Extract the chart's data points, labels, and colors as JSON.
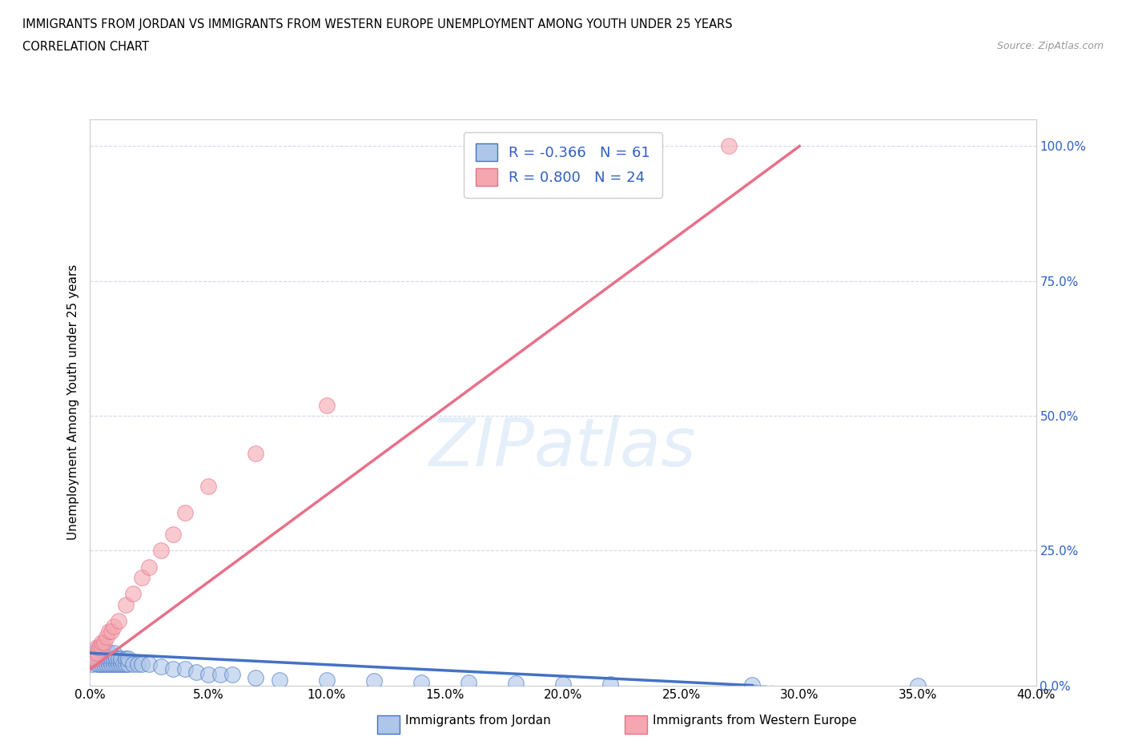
{
  "title_line1": "IMMIGRANTS FROM JORDAN VS IMMIGRANTS FROM WESTERN EUROPE UNEMPLOYMENT AMONG YOUTH UNDER 25 YEARS",
  "title_line2": "CORRELATION CHART",
  "source": "Source: ZipAtlas.com",
  "ylabel_label": "Unemployment Among Youth under 25 years",
  "xlim": [
    0.0,
    0.4
  ],
  "ylim": [
    0.0,
    1.05
  ],
  "jordan_R": -0.366,
  "jordan_N": 61,
  "western_europe_R": 0.8,
  "western_europe_N": 24,
  "jordan_color": "#aec6e8",
  "western_europe_color": "#f4a7b0",
  "jordan_line_color": "#4472c4",
  "western_europe_line_color": "#e8708a",
  "legend_text_color": "#3060c0",
  "jordan_scatter_x": [
    0.0,
    0.001,
    0.002,
    0.002,
    0.003,
    0.003,
    0.003,
    0.004,
    0.004,
    0.004,
    0.005,
    0.005,
    0.005,
    0.005,
    0.006,
    0.006,
    0.006,
    0.007,
    0.007,
    0.007,
    0.008,
    0.008,
    0.008,
    0.009,
    0.009,
    0.01,
    0.01,
    0.01,
    0.011,
    0.011,
    0.012,
    0.012,
    0.013,
    0.013,
    0.014,
    0.015,
    0.015,
    0.016,
    0.016,
    0.018,
    0.02,
    0.022,
    0.025,
    0.03,
    0.035,
    0.04,
    0.045,
    0.05,
    0.055,
    0.06,
    0.07,
    0.08,
    0.1,
    0.12,
    0.14,
    0.16,
    0.18,
    0.2,
    0.22,
    0.28,
    0.35
  ],
  "jordan_scatter_y": [
    0.05,
    0.04,
    0.05,
    0.06,
    0.04,
    0.05,
    0.06,
    0.04,
    0.05,
    0.07,
    0.04,
    0.05,
    0.06,
    0.07,
    0.04,
    0.05,
    0.06,
    0.04,
    0.05,
    0.06,
    0.04,
    0.05,
    0.06,
    0.04,
    0.05,
    0.04,
    0.05,
    0.06,
    0.04,
    0.05,
    0.04,
    0.05,
    0.04,
    0.05,
    0.04,
    0.04,
    0.05,
    0.04,
    0.05,
    0.04,
    0.04,
    0.04,
    0.04,
    0.035,
    0.03,
    0.03,
    0.025,
    0.02,
    0.02,
    0.02,
    0.015,
    0.01,
    0.01,
    0.008,
    0.006,
    0.005,
    0.004,
    0.003,
    0.002,
    0.001,
    0.0
  ],
  "we_scatter_x": [
    0.001,
    0.002,
    0.003,
    0.003,
    0.004,
    0.005,
    0.005,
    0.006,
    0.007,
    0.008,
    0.009,
    0.01,
    0.012,
    0.015,
    0.018,
    0.022,
    0.025,
    0.03,
    0.035,
    0.04,
    0.05,
    0.07,
    0.1,
    0.27
  ],
  "we_scatter_y": [
    0.05,
    0.05,
    0.06,
    0.07,
    0.07,
    0.07,
    0.08,
    0.08,
    0.09,
    0.1,
    0.1,
    0.11,
    0.12,
    0.15,
    0.17,
    0.2,
    0.22,
    0.25,
    0.28,
    0.32,
    0.37,
    0.43,
    0.52,
    1.0
  ],
  "jordan_trend_x": [
    0.0,
    0.28
  ],
  "jordan_trend_y": [
    0.06,
    0.0
  ],
  "we_trend_x": [
    0.0,
    0.3
  ],
  "we_trend_y": [
    0.03,
    1.0
  ],
  "grid_color": "#d0d8e8",
  "background_color": "#ffffff",
  "xtick_vals": [
    0.0,
    0.05,
    0.1,
    0.15,
    0.2,
    0.25,
    0.3,
    0.35,
    0.4
  ],
  "xtick_labels": [
    "0.0%",
    "5.0%",
    "10.0%",
    "15.0%",
    "20.0%",
    "25.0%",
    "30.0%",
    "35.0%",
    "40.0%"
  ],
  "ytick_vals": [
    0.0,
    0.25,
    0.5,
    0.75,
    1.0
  ],
  "ytick_labels": [
    "0.0%",
    "25.0%",
    "50.0%",
    "75.0%",
    "100.0%"
  ]
}
